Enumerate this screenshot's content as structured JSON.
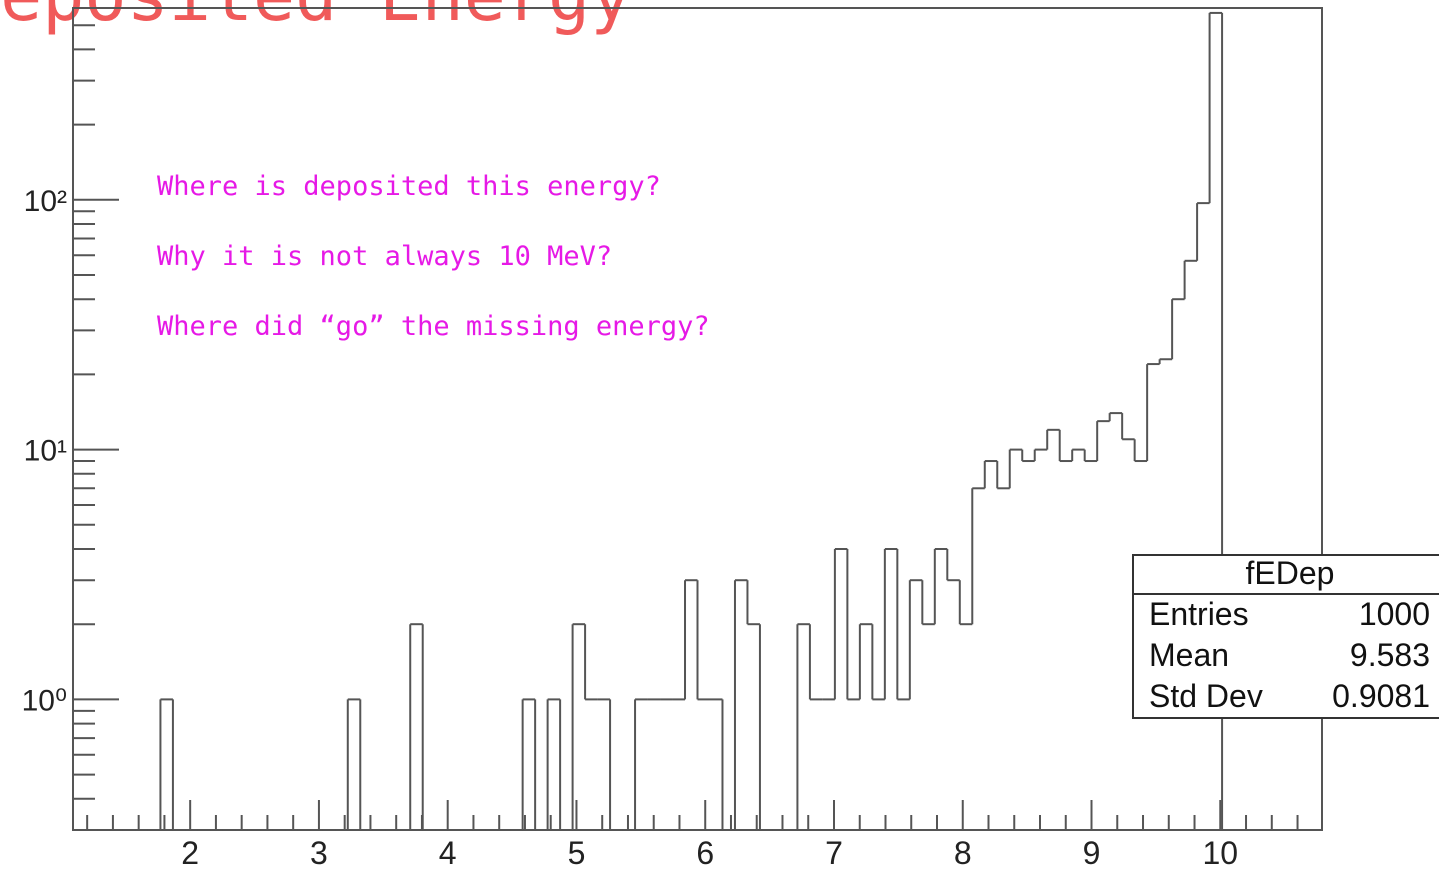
{
  "chart_data": {
    "type": "histogram",
    "title": "Deposited Energy",
    "annotations": [
      "Where is deposited this energy?",
      "Why it is not always 10 MeV?",
      "Where did “go” the missing energy?"
    ],
    "bins": [
      1.09,
      1.187,
      1.284,
      1.381,
      1.478,
      1.575,
      1.672,
      1.769,
      1.866,
      1.963,
      2.06,
      2.157,
      2.254,
      2.351,
      2.448,
      2.545,
      2.642,
      2.739,
      2.836,
      2.933,
      3.03,
      3.127,
      3.224,
      3.321,
      3.418,
      3.515,
      3.612,
      3.709,
      3.806,
      3.903,
      4.0,
      4.097,
      4.194,
      4.291,
      4.388,
      4.485,
      4.582,
      4.679,
      4.776,
      4.873,
      4.97,
      5.067,
      5.164,
      5.261,
      5.358,
      5.455,
      5.552,
      5.649,
      5.746,
      5.843,
      5.94,
      6.037,
      6.134,
      6.231,
      6.328,
      6.425,
      6.522,
      6.619,
      6.716,
      6.813,
      6.91,
      7.007,
      7.104,
      7.201,
      7.298,
      7.395,
      7.492,
      7.589,
      7.686,
      7.783,
      7.88,
      7.977,
      8.074,
      8.171,
      8.268,
      8.365,
      8.462,
      8.559,
      8.656,
      8.753,
      8.85,
      8.947,
      9.044,
      9.141,
      9.238,
      9.335,
      9.432,
      9.529,
      9.626,
      9.723,
      9.82,
      9.917,
      10.014,
      10.111,
      10.208,
      10.305,
      10.402,
      10.499,
      10.596,
      10.693,
      10.79
    ],
    "values": [
      0,
      0,
      0,
      0,
      0,
      0,
      0,
      1,
      0,
      0,
      0,
      0,
      0,
      0,
      0,
      0,
      0,
      0,
      0,
      0,
      0,
      0,
      1,
      0,
      0,
      0,
      0,
      2,
      0,
      0,
      0,
      0,
      0,
      0,
      0,
      0,
      1,
      0,
      1,
      0,
      2,
      1,
      1,
      0,
      0,
      1,
      1,
      1,
      1,
      3,
      1,
      1,
      0,
      3,
      2,
      0,
      0,
      0,
      2,
      1,
      1,
      4,
      1,
      2,
      1,
      4,
      1,
      3,
      2,
      4,
      3,
      2,
      7,
      9,
      7,
      10,
      9,
      10,
      12,
      9,
      10,
      9,
      13,
      14,
      11,
      9,
      22,
      23,
      40,
      57,
      97,
      560,
      0,
      0,
      0,
      0,
      0,
      0,
      0,
      0
    ],
    "color": "#555555",
    "xlim": [
      1.09,
      10.79
    ],
    "xticks": [
      2,
      3,
      4,
      5,
      6,
      7,
      8,
      9,
      10
    ],
    "xminorticks": [
      1.2,
      1.4,
      1.6,
      1.8,
      2.2,
      2.4,
      2.6,
      2.8,
      3.2,
      3.4,
      3.6,
      3.8,
      4.2,
      4.4,
      4.6,
      4.8,
      5.2,
      5.4,
      5.6,
      5.8,
      6.2,
      6.4,
      6.6,
      6.8,
      7.2,
      7.4,
      7.6,
      7.8,
      8.2,
      8.4,
      8.6,
      8.8,
      9.2,
      9.4,
      9.6,
      9.8,
      10.2,
      10.4,
      10.6
    ],
    "ylim": [
      0.3,
      586
    ],
    "yscale": "log",
    "yticks": [
      {
        "value": 1,
        "label": "10⁰"
      },
      {
        "value": 10,
        "label": "10¹"
      },
      {
        "value": 100,
        "label": "10²"
      }
    ],
    "yminorticks": [
      0.4,
      0.5,
      0.6,
      0.7,
      0.8,
      0.9,
      2,
      3,
      4,
      5,
      6,
      7,
      8,
      9,
      20,
      30,
      40,
      50,
      60,
      70,
      80,
      90,
      200,
      300,
      400,
      500
    ],
    "stats": {
      "title": "fEDep",
      "rows": [
        [
          "Entries",
          "1000"
        ],
        [
          "Mean",
          "9.583"
        ],
        [
          "Std Dev",
          "0.9081"
        ]
      ]
    }
  }
}
